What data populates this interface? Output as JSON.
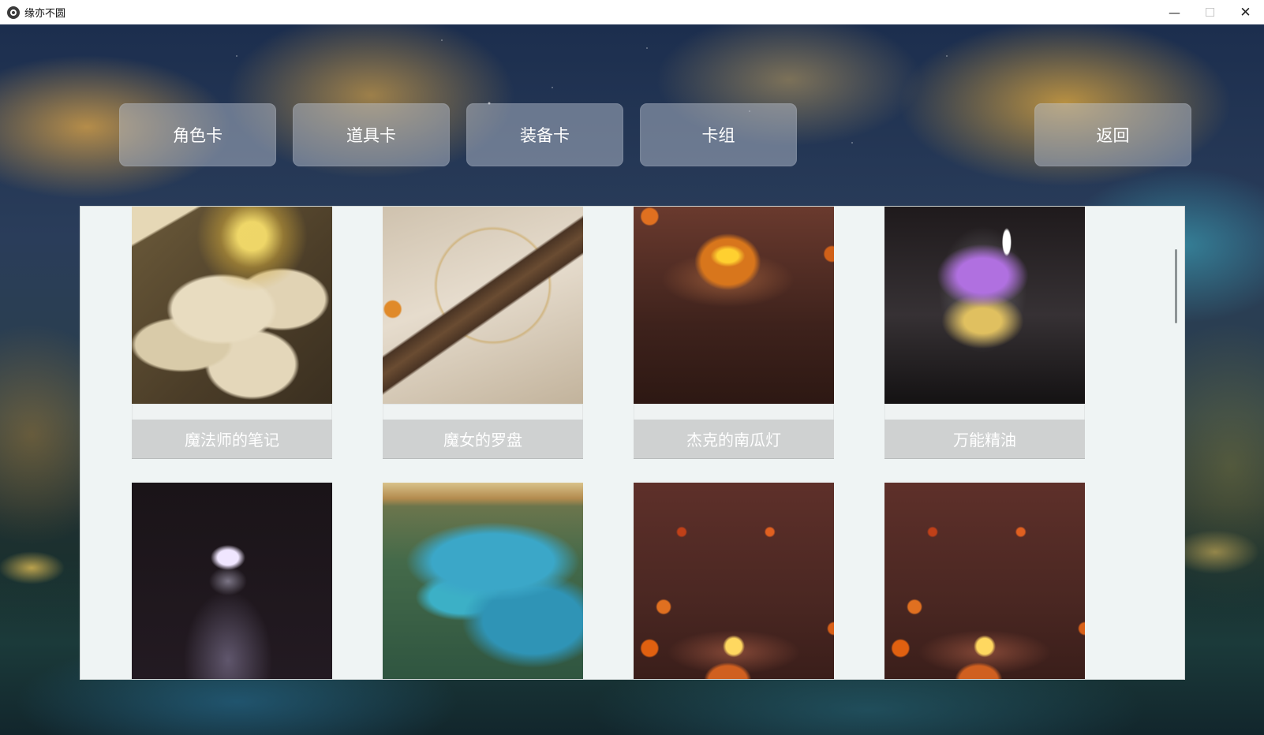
{
  "window": {
    "title": "缘亦不圆",
    "controls": {
      "minimize": "—",
      "maximize": "☐",
      "close": "✕"
    }
  },
  "nav": {
    "tabs": [
      {
        "label": "角色卡"
      },
      {
        "label": "道具卡"
      },
      {
        "label": "装备卡"
      },
      {
        "label": "卡组"
      }
    ],
    "back_label": "返回"
  },
  "cards": [
    {
      "name": "魔法师的笔记",
      "art": "magician-notes-image"
    },
    {
      "name": "魔女的罗盘",
      "art": "witch-compass-image"
    },
    {
      "name": "杰克的南瓜灯",
      "art": "jack-o-lantern-image"
    },
    {
      "name": "万能精油",
      "art": "universal-essential-oil-image"
    },
    {
      "name": "",
      "art": "crystal-bottle-image"
    },
    {
      "name": "",
      "art": "landscape-image"
    },
    {
      "name": "",
      "art": "pumpkin-lanterns-image"
    },
    {
      "name": "",
      "art": "pumpkin-lanterns-image"
    }
  ]
}
